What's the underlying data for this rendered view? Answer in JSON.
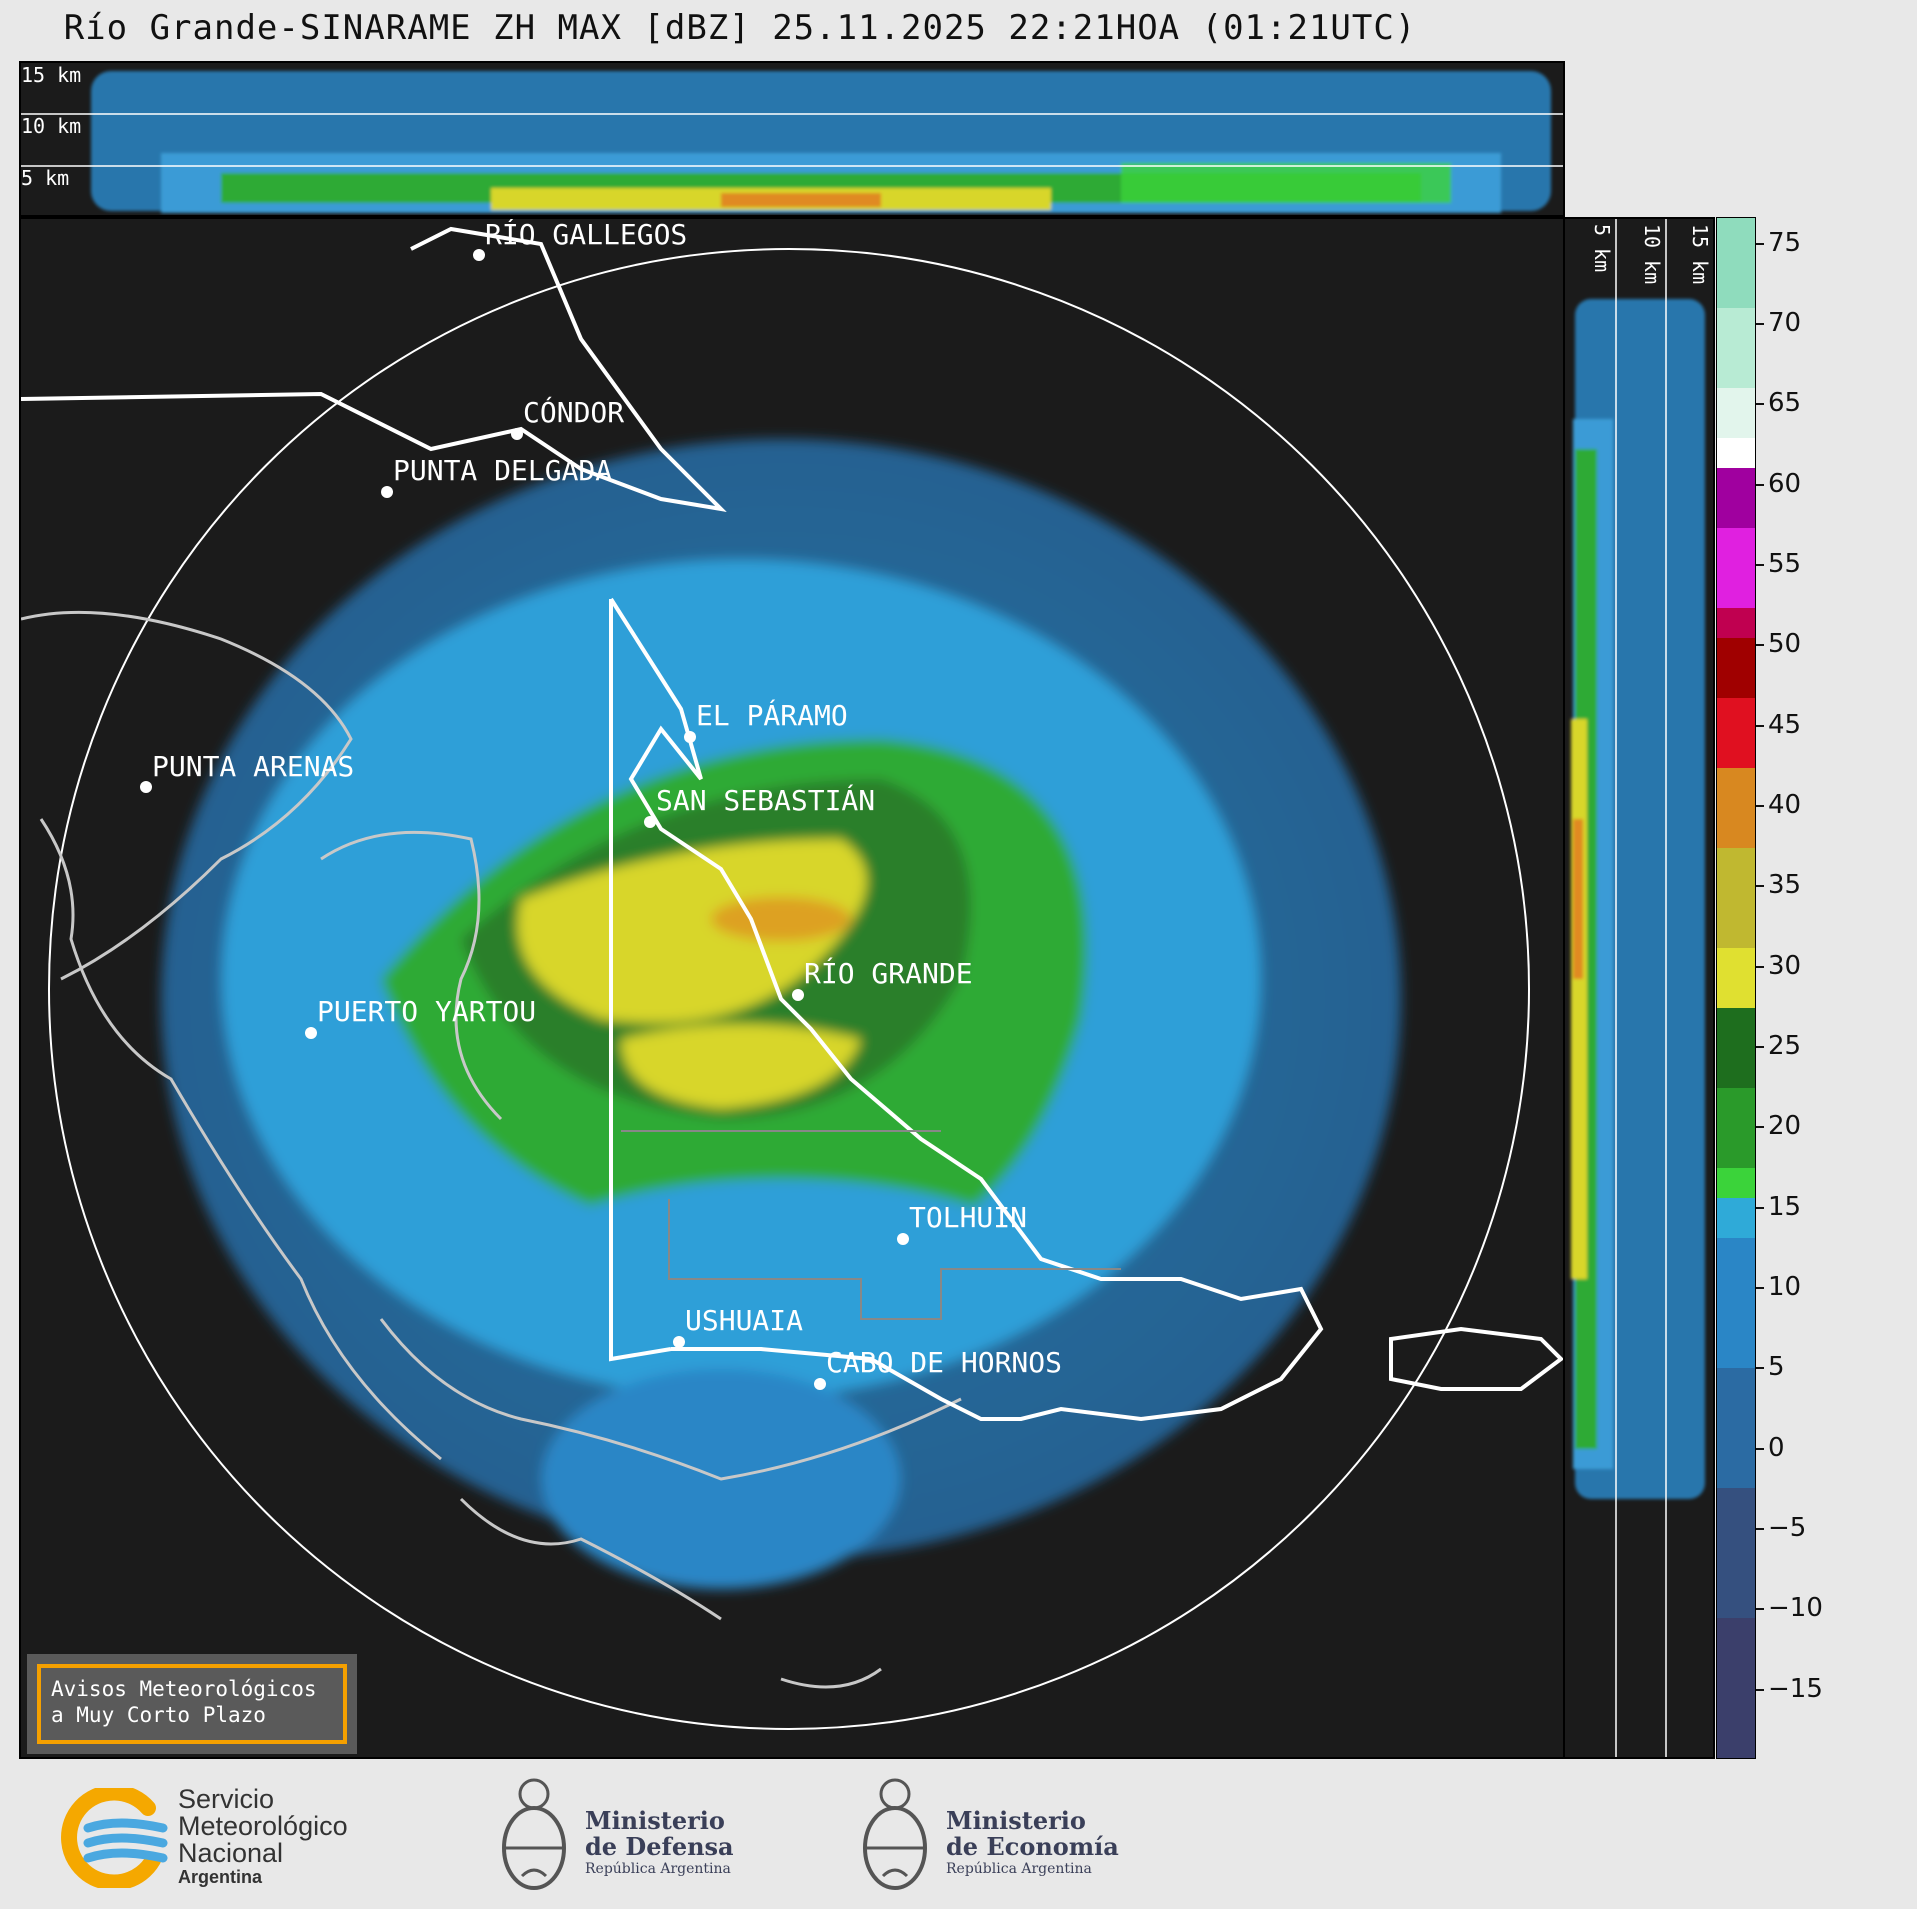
{
  "title": "Río Grande-SINARAME ZH MAX [dBZ] 25.11.2025 22:21HOA (01:21UTC)",
  "top_panel": {
    "alt_labels": [
      "15 km",
      "10 km",
      "5 km"
    ]
  },
  "side_panel": {
    "alt_labels": [
      "5 km",
      "10 km",
      "15 km"
    ]
  },
  "map": {
    "cities": [
      {
        "name": "RÍO GALLEGOS"
      },
      {
        "name": "CÓNDOR"
      },
      {
        "name": "PUNTA DELGADA"
      },
      {
        "name": "EL PÁRAMO"
      },
      {
        "name": "PUNTA ARENAS"
      },
      {
        "name": "SAN SEBASTIÁN"
      },
      {
        "name": "RÍO GRANDE"
      },
      {
        "name": "PUERTO YARTOU"
      },
      {
        "name": "TOLHUIN"
      },
      {
        "name": "USHUAIA"
      },
      {
        "name": "CABO DE HORNOS"
      }
    ]
  },
  "colorbar": {
    "unit": "dBZ",
    "ticks": [
      "75",
      "70",
      "65",
      "60",
      "55",
      "50",
      "45",
      "40",
      "35",
      "30",
      "25",
      "20",
      "15",
      "10",
      "5",
      "0",
      "−5",
      "−10",
      "−15"
    ]
  },
  "warning_box": {
    "line1": "Avisos Meteorológicos",
    "line2": "a Muy Corto Plazo"
  },
  "footer": {
    "smn": {
      "line1": "Servicio",
      "line2": "Meteorológico",
      "line3": "Nacional",
      "line4": "Argentina"
    },
    "defensa": {
      "line1": "Ministerio",
      "line2": "de Defensa",
      "line3": "República Argentina"
    },
    "economia": {
      "line1": "Ministerio",
      "line2": "de Economía",
      "line3": "República Argentina"
    }
  },
  "colors": {
    "background": "#1b1b1b",
    "page": "#e8e8e8",
    "warning_border": "#f5a000"
  }
}
